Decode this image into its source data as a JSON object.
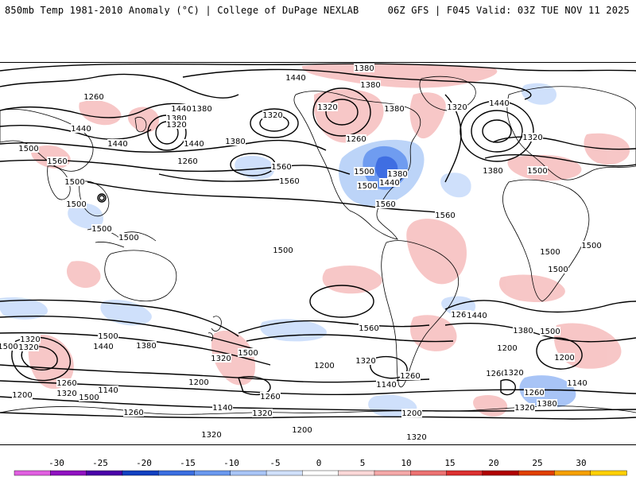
{
  "header": {
    "left": "850mb Temp 1981-2010 Anomaly (°C) | College of DuPage NEXLAB",
    "right": "06Z GFS | F045 Valid: 03Z TUE NOV 11 2025"
  },
  "legend": {
    "ticks": [
      "-30",
      "-25",
      "-20",
      "-15",
      "-10",
      "-5",
      "0",
      "5",
      "10",
      "15",
      "20",
      "25",
      "30"
    ],
    "colors": [
      "#e060e0",
      "#9010c0",
      "#4a00a8",
      "#1040c0",
      "#3a6ee0",
      "#6a98ee",
      "#a8c4f6",
      "#d0e0fa",
      "#ffffff",
      "#fbd8d8",
      "#f4a8a8",
      "#ec7272",
      "#dc3030",
      "#b00000",
      "#e04000",
      "#f5a000",
      "#ffd000"
    ],
    "step": 2.5
  },
  "contour_labels": [
    {
      "id": "c1",
      "text": "1380"
    },
    {
      "id": "c2",
      "text": "1440"
    },
    {
      "id": "c3",
      "text": "1380"
    },
    {
      "id": "c4",
      "text": "1440"
    },
    {
      "id": "c5",
      "text": "1260"
    },
    {
      "id": "c6",
      "text": "1380"
    },
    {
      "id": "c7",
      "text": "1320"
    },
    {
      "id": "c8",
      "text": "1320"
    },
    {
      "id": "c9",
      "text": "1440"
    },
    {
      "id": "c10",
      "text": "1380"
    },
    {
      "id": "c11",
      "text": "1380"
    },
    {
      "id": "c12",
      "text": "1440"
    },
    {
      "id": "c13",
      "text": "1260"
    },
    {
      "id": "c14",
      "text": "1500"
    },
    {
      "id": "c15",
      "text": "1560"
    },
    {
      "id": "c16",
      "text": "1500"
    },
    {
      "id": "c17",
      "text": "1560"
    },
    {
      "id": "c18",
      "text": "1560"
    },
    {
      "id": "c19",
      "text": "1500"
    },
    {
      "id": "c20",
      "text": "1500"
    },
    {
      "id": "c21",
      "text": "1500"
    },
    {
      "id": "c22",
      "text": "1320"
    },
    {
      "id": "c23",
      "text": "1260"
    },
    {
      "id": "c24",
      "text": "1320"
    },
    {
      "id": "c25",
      "text": "1380"
    },
    {
      "id": "c26",
      "text": "1440"
    },
    {
      "id": "c27",
      "text": "1500"
    },
    {
      "id": "c28",
      "text": "1560"
    },
    {
      "id": "c29",
      "text": "1560"
    },
    {
      "id": "c30",
      "text": "1500"
    },
    {
      "id": "c31",
      "text": "1500"
    },
    {
      "id": "c32",
      "text": "1500"
    },
    {
      "id": "c33",
      "text": "1320"
    },
    {
      "id": "c34",
      "text": "1440"
    },
    {
      "id": "c35",
      "text": "1500"
    },
    {
      "id": "c36",
      "text": "1380"
    },
    {
      "id": "c37",
      "text": "1380"
    },
    {
      "id": "c38",
      "text": "1440"
    },
    {
      "id": "c39",
      "text": "1500"
    },
    {
      "id": "c40",
      "text": "1500"
    },
    {
      "id": "c41",
      "text": "1380"
    },
    {
      "id": "c42",
      "text": "1320"
    },
    {
      "id": "c43",
      "text": "1200"
    },
    {
      "id": "c44",
      "text": "1260"
    },
    {
      "id": "c45",
      "text": "1320"
    },
    {
      "id": "c46",
      "text": "1200"
    },
    {
      "id": "c47",
      "text": "1260"
    },
    {
      "id": "c48",
      "text": "1200"
    },
    {
      "id": "c49",
      "text": "1140"
    },
    {
      "id": "c50",
      "text": "1320"
    },
    {
      "id": "c51",
      "text": "1200"
    },
    {
      "id": "c52",
      "text": "1320"
    },
    {
      "id": "c53",
      "text": "1140"
    },
    {
      "id": "c54",
      "text": "1260"
    },
    {
      "id": "c55",
      "text": "1200"
    },
    {
      "id": "c56",
      "text": "1140"
    },
    {
      "id": "c57",
      "text": "1260"
    },
    {
      "id": "c58",
      "text": "1200"
    },
    {
      "id": "c59",
      "text": "1320"
    },
    {
      "id": "c60",
      "text": "1140"
    },
    {
      "id": "c61",
      "text": "1260"
    },
    {
      "id": "c62",
      "text": "1320"
    },
    {
      "id": "c63",
      "text": "1380"
    },
    {
      "id": "c64",
      "text": "1200"
    },
    {
      "id": "c65",
      "text": "1260"
    },
    {
      "id": "c66",
      "text": "1320"
    },
    {
      "id": "c67",
      "text": "1320"
    },
    {
      "id": "c68",
      "text": "1260"
    },
    {
      "id": "c69",
      "text": "1380"
    },
    {
      "id": "c70",
      "text": "1500"
    },
    {
      "id": "c71",
      "text": "1500"
    },
    {
      "id": "c72",
      "text": "1440"
    },
    {
      "id": "c73",
      "text": "1320"
    },
    {
      "id": "c74",
      "text": "1500"
    },
    {
      "id": "c75",
      "text": "1500"
    },
    {
      "id": "c76",
      "text": "1500"
    },
    {
      "id": "c77",
      "text": "1440"
    },
    {
      "id": "c78",
      "text": "1560"
    },
    {
      "id": "c79",
      "text": "1320"
    }
  ]
}
